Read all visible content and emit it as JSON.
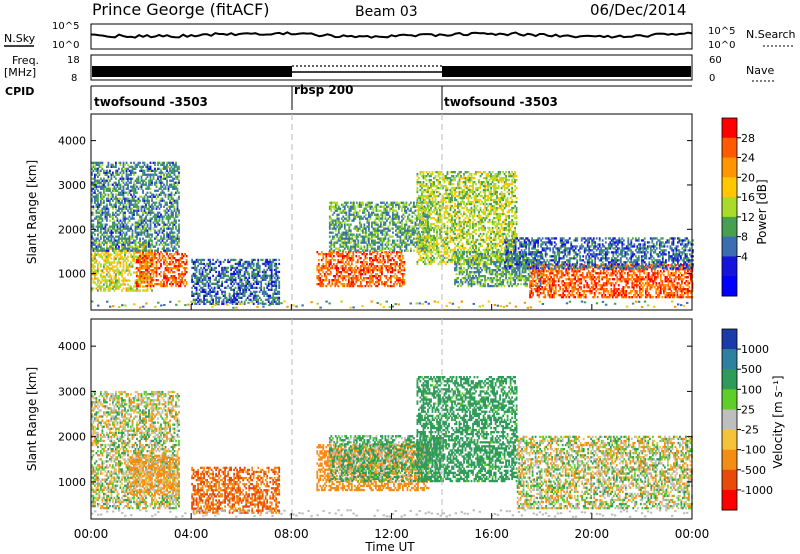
{
  "header": {
    "station": "Prince George (fitACF)",
    "beam": "Beam 03",
    "date": "06/Dec/2014"
  },
  "noise_panel": {
    "left_label": "N.Sky",
    "right_label": "N.Search",
    "left_ticks": [
      "10^5",
      "10^0"
    ],
    "right_ticks": [
      "10^5",
      "10^0"
    ]
  },
  "freq_panel": {
    "label_top": "Freq.",
    "label_unit": "[MHz]",
    "left_ticks": [
      "18",
      "8"
    ],
    "right_ticks": [
      "60",
      "0"
    ],
    "right_label": "Nave"
  },
  "cpid_panel": {
    "label": "CPID",
    "segments": [
      {
        "name": "twofsound -3503",
        "start_h": 0,
        "end_h": 8
      },
      {
        "name": "rbsp 200",
        "start_h": 8,
        "end_h": 14
      },
      {
        "name": "twofsound -3503",
        "start_h": 14,
        "end_h": 24
      }
    ]
  },
  "axes": {
    "ylabel": "Slant Range [km]",
    "xlabel": "Time UT",
    "x_ticks": [
      "00:00",
      "04:00",
      "08:00",
      "12:00",
      "16:00",
      "20:00",
      "00:00"
    ],
    "y_ticks": [
      "1000",
      "2000",
      "3000",
      "4000"
    ],
    "x_range_h": [
      0,
      24
    ],
    "y_range_km": [
      180,
      4600
    ],
    "mode_change_lines_h": [
      8,
      14
    ]
  },
  "power_colorbar": {
    "label": "Power [dB]",
    "ticks": [
      "28",
      "24",
      "20",
      "16",
      "12",
      "8",
      "4"
    ],
    "colors": [
      "#ff0000",
      "#ff5a00",
      "#ff9600",
      "#ffc800",
      "#a8dc28",
      "#46a050",
      "#3a6eb0",
      "#1414dc",
      "#0000ff"
    ]
  },
  "velocity_colorbar": {
    "label": "Velocity [m s⁻¹]",
    "ticks": [
      "1000",
      "500",
      "100",
      "25",
      "-25",
      "-100",
      "-500",
      "-1000"
    ],
    "colors": [
      "#1a3ca8",
      "#2e7fa0",
      "#2e9b5a",
      "#5fcd2a",
      "#bebebe",
      "#f5c23c",
      "#f58c14",
      "#e84a0a",
      "#ff0000"
    ]
  },
  "chart_data": [
    {
      "type": "heatmap",
      "title": "Power [dB]",
      "xlabel": "Time UT",
      "ylabel": "Slant Range [km]",
      "xlim_h": [
        0,
        24
      ],
      "ylim_km": [
        180,
        4600
      ],
      "scatter_regions": [
        {
          "t0": 0.0,
          "t1": 2.5,
          "r0": 600,
          "r1": 1700,
          "power_db": 18
        },
        {
          "t0": 1.8,
          "t1": 3.8,
          "r0": 700,
          "r1": 1500,
          "power_db": 28
        },
        {
          "t0": 0.0,
          "t1": 3.5,
          "r0": 1500,
          "r1": 3500,
          "power_db": 10
        },
        {
          "t0": 4.0,
          "t1": 7.5,
          "r0": 300,
          "r1": 1300,
          "power_db": 8
        },
        {
          "t0": 9.0,
          "t1": 12.5,
          "r0": 700,
          "r1": 1500,
          "power_db": 28
        },
        {
          "t0": 9.5,
          "t1": 13.5,
          "r0": 1500,
          "r1": 2600,
          "power_db": 12
        },
        {
          "t0": 13.0,
          "t1": 17.0,
          "r0": 1200,
          "r1": 3300,
          "power_db": 16
        },
        {
          "t0": 14.5,
          "t1": 18.0,
          "r0": 700,
          "r1": 1500,
          "power_db": 12
        },
        {
          "t0": 17.5,
          "t1": 24.0,
          "r0": 450,
          "r1": 1200,
          "power_db": 28
        },
        {
          "t0": 16.5,
          "t1": 24.0,
          "r0": 1100,
          "r1": 1800,
          "power_db": 8
        }
      ]
    },
    {
      "type": "heatmap",
      "title": "Velocity [m s⁻¹]",
      "xlabel": "Time UT",
      "ylabel": "Slant Range [km]",
      "xlim_h": [
        0,
        24
      ],
      "ylim_km": [
        180,
        4600
      ],
      "scatter_regions": [
        {
          "t0": 0.0,
          "t1": 3.5,
          "r0": 400,
          "r1": 3000,
          "velocity_ms": 0
        },
        {
          "t0": 1.5,
          "t1": 3.5,
          "r0": 700,
          "r1": 1600,
          "velocity_ms": -100
        },
        {
          "t0": 4.0,
          "t1": 7.5,
          "r0": 300,
          "r1": 1300,
          "velocity_ms": -300
        },
        {
          "t0": 9.0,
          "t1": 13.5,
          "r0": 800,
          "r1": 1800,
          "velocity_ms": -200
        },
        {
          "t0": 9.5,
          "t1": 14.0,
          "r0": 1000,
          "r1": 2000,
          "velocity_ms": 80
        },
        {
          "t0": 13.0,
          "t1": 17.0,
          "r0": 1000,
          "r1": 3300,
          "velocity_ms": 150
        },
        {
          "t0": 17.0,
          "t1": 24.0,
          "r0": 400,
          "r1": 2000,
          "velocity_ms": 0
        }
      ]
    }
  ]
}
